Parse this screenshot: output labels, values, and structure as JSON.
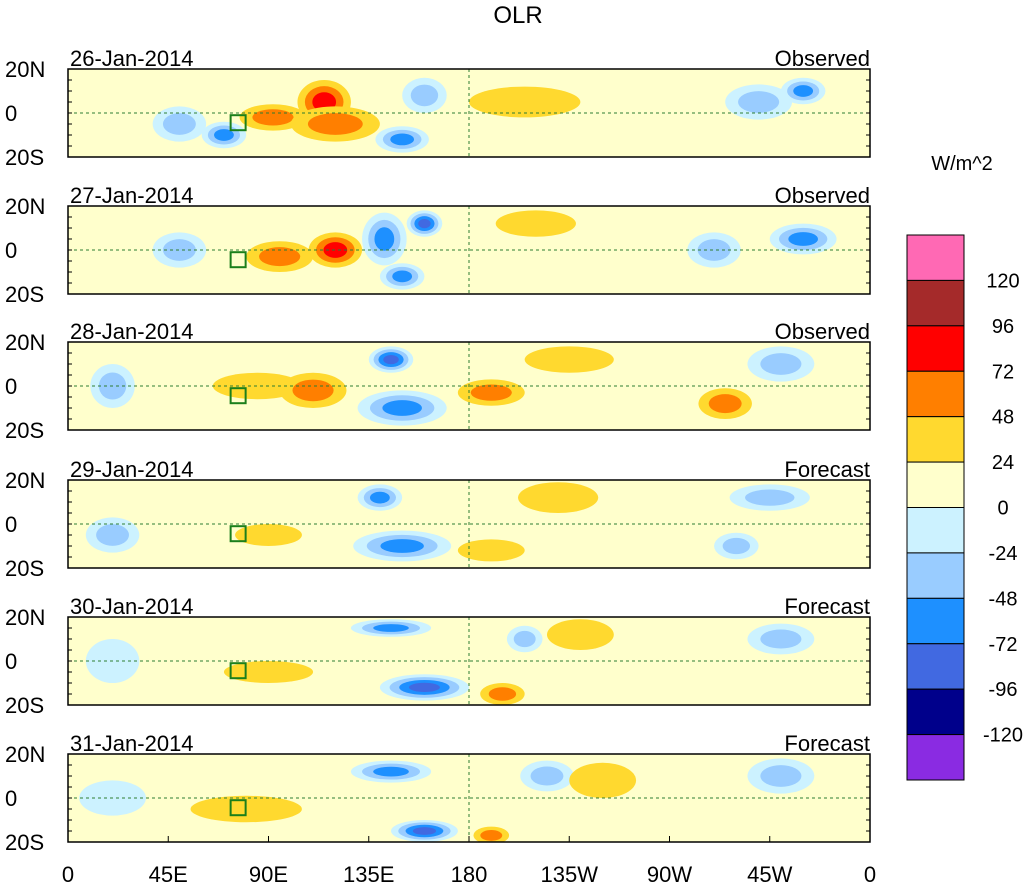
{
  "chart_data": {
    "type": "heatmap",
    "title": "OLR",
    "units_label": "W/m^2",
    "lat_tick_labels": [
      "20N",
      "0",
      "20S"
    ],
    "lon_tick_labels": [
      "0",
      "45E",
      "90E",
      "135E",
      "180",
      "135W",
      "90W",
      "45W",
      "0"
    ],
    "lon_range": [
      0,
      360
    ],
    "lat_range": [
      -20,
      20
    ],
    "panels": [
      {
        "date": "26-Jan-2014",
        "kind": "Observed"
      },
      {
        "date": "27-Jan-2014",
        "kind": "Observed"
      },
      {
        "date": "28-Jan-2014",
        "kind": "Observed"
      },
      {
        "date": "29-Jan-2014",
        "kind": "Forecast"
      },
      {
        "date": "30-Jan-2014",
        "kind": "Forecast"
      },
      {
        "date": "31-Jan-2014",
        "kind": "Forecast"
      }
    ],
    "colorbar": {
      "colors": [
        "#FF69B4",
        "#A52A2A",
        "#FF0000",
        "#FF7F00",
        "#FFD92F",
        "#FFFFCC",
        "#CCF2FF",
        "#99CCFF",
        "#1E90FF",
        "#4169E1",
        "#00008B",
        "#8A2BE2"
      ],
      "labels": [
        "120",
        "96",
        "72",
        "48",
        "24",
        "0",
        "-24",
        "-48",
        "-72",
        "-96",
        "-120"
      ]
    },
    "anomaly_blobs": [
      [
        {
          "lon": 50,
          "lat": -5,
          "rx": 12,
          "ry": 8,
          "level": -2
        },
        {
          "lon": 70,
          "lat": -10,
          "rx": 10,
          "ry": 6,
          "level": -3
        },
        {
          "lon": 92,
          "lat": -2,
          "rx": 15,
          "ry": 6,
          "level": 2
        },
        {
          "lon": 115,
          "lat": 5,
          "rx": 12,
          "ry": 10,
          "level": 3
        },
        {
          "lon": 120,
          "lat": -5,
          "rx": 20,
          "ry": 8,
          "level": 2
        },
        {
          "lon": 150,
          "lat": -12,
          "rx": 12,
          "ry": 6,
          "level": -3
        },
        {
          "lon": 160,
          "lat": 8,
          "rx": 10,
          "ry": 8,
          "level": -2
        },
        {
          "lon": 205,
          "lat": 5,
          "rx": 25,
          "ry": 7,
          "level": 1
        },
        {
          "lon": 310,
          "lat": 5,
          "rx": 15,
          "ry": 8,
          "level": -2
        },
        {
          "lon": 330,
          "lat": 10,
          "rx": 10,
          "ry": 6,
          "level": -3
        }
      ],
      [
        {
          "lon": 50,
          "lat": 0,
          "rx": 12,
          "ry": 8,
          "level": -2
        },
        {
          "lon": 95,
          "lat": -3,
          "rx": 15,
          "ry": 7,
          "level": 2
        },
        {
          "lon": 120,
          "lat": 0,
          "rx": 12,
          "ry": 8,
          "level": 3
        },
        {
          "lon": 142,
          "lat": 5,
          "rx": 10,
          "ry": 12,
          "level": -3
        },
        {
          "lon": 160,
          "lat": 12,
          "rx": 8,
          "ry": 6,
          "level": -4
        },
        {
          "lon": 150,
          "lat": -12,
          "rx": 10,
          "ry": 6,
          "level": -3
        },
        {
          "lon": 210,
          "lat": 12,
          "rx": 18,
          "ry": 6,
          "level": 1
        },
        {
          "lon": 290,
          "lat": 0,
          "rx": 12,
          "ry": 8,
          "level": -2
        },
        {
          "lon": 330,
          "lat": 5,
          "rx": 15,
          "ry": 7,
          "level": -3
        }
      ],
      [
        {
          "lon": 20,
          "lat": 0,
          "rx": 10,
          "ry": 10,
          "level": -2
        },
        {
          "lon": 85,
          "lat": 0,
          "rx": 20,
          "ry": 6,
          "level": 1
        },
        {
          "lon": 110,
          "lat": -2,
          "rx": 15,
          "ry": 8,
          "level": 2
        },
        {
          "lon": 145,
          "lat": 12,
          "rx": 10,
          "ry": 6,
          "level": -4
        },
        {
          "lon": 150,
          "lat": -10,
          "rx": 20,
          "ry": 8,
          "level": -3
        },
        {
          "lon": 190,
          "lat": -3,
          "rx": 15,
          "ry": 6,
          "level": 2
        },
        {
          "lon": 225,
          "lat": 12,
          "rx": 20,
          "ry": 6,
          "level": 1
        },
        {
          "lon": 320,
          "lat": 10,
          "rx": 15,
          "ry": 8,
          "level": -2
        },
        {
          "lon": 295,
          "lat": -8,
          "rx": 12,
          "ry": 7,
          "level": 2
        }
      ],
      [
        {
          "lon": 20,
          "lat": -5,
          "rx": 12,
          "ry": 8,
          "level": -2
        },
        {
          "lon": 90,
          "lat": -5,
          "rx": 15,
          "ry": 5,
          "level": 1
        },
        {
          "lon": 140,
          "lat": 12,
          "rx": 10,
          "ry": 6,
          "level": -3
        },
        {
          "lon": 150,
          "lat": -10,
          "rx": 22,
          "ry": 7,
          "level": -3
        },
        {
          "lon": 190,
          "lat": -12,
          "rx": 15,
          "ry": 5,
          "level": 1
        },
        {
          "lon": 220,
          "lat": 12,
          "rx": 18,
          "ry": 7,
          "level": 1
        },
        {
          "lon": 315,
          "lat": 12,
          "rx": 18,
          "ry": 6,
          "level": -2
        },
        {
          "lon": 300,
          "lat": -10,
          "rx": 10,
          "ry": 6,
          "level": -2
        }
      ],
      [
        {
          "lon": 20,
          "lat": 0,
          "rx": 12,
          "ry": 10,
          "level": -1
        },
        {
          "lon": 90,
          "lat": -5,
          "rx": 20,
          "ry": 5,
          "level": 1
        },
        {
          "lon": 145,
          "lat": 15,
          "rx": 18,
          "ry": 4,
          "level": -3
        },
        {
          "lon": 160,
          "lat": -12,
          "rx": 20,
          "ry": 6,
          "level": -4
        },
        {
          "lon": 195,
          "lat": -15,
          "rx": 10,
          "ry": 5,
          "level": 2
        },
        {
          "lon": 205,
          "lat": 10,
          "rx": 8,
          "ry": 6,
          "level": -2
        },
        {
          "lon": 230,
          "lat": 12,
          "rx": 15,
          "ry": 7,
          "level": 1
        },
        {
          "lon": 320,
          "lat": 10,
          "rx": 15,
          "ry": 7,
          "level": -2
        }
      ],
      [
        {
          "lon": 20,
          "lat": 0,
          "rx": 15,
          "ry": 8,
          "level": -1
        },
        {
          "lon": 80,
          "lat": -5,
          "rx": 25,
          "ry": 6,
          "level": 1
        },
        {
          "lon": 145,
          "lat": 12,
          "rx": 18,
          "ry": 5,
          "level": -3
        },
        {
          "lon": 160,
          "lat": -15,
          "rx": 15,
          "ry": 5,
          "level": -4
        },
        {
          "lon": 190,
          "lat": -17,
          "rx": 8,
          "ry": 4,
          "level": 2
        },
        {
          "lon": 215,
          "lat": 10,
          "rx": 12,
          "ry": 7,
          "level": -2
        },
        {
          "lon": 240,
          "lat": 8,
          "rx": 15,
          "ry": 8,
          "level": 1
        },
        {
          "lon": 320,
          "lat": 10,
          "rx": 15,
          "ry": 8,
          "level": -2
        }
      ]
    ]
  }
}
